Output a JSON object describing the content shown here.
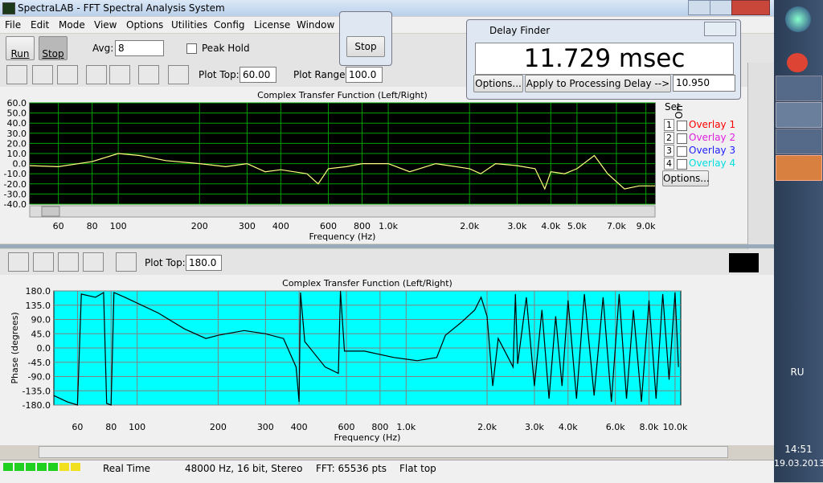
{
  "window": {
    "title": "SpectraLAB - FFT Spectral Analysis System"
  },
  "menu": [
    "File",
    "Edit",
    "Mode",
    "View",
    "Options",
    "Utilities",
    "Config",
    "License",
    "Window"
  ],
  "toolbar": {
    "run": "Run",
    "stop": "Stop",
    "avg_label": "Avg:",
    "avg_value": "8",
    "peak_hold": "Peak Hold",
    "plot_top_label": "Plot Top:",
    "plot_top_value": "60.00",
    "plot_range_label": "Plot Range:",
    "plot_range_value": "100.0"
  },
  "stop_popup": {
    "button": "Stop"
  },
  "delay_finder": {
    "title": "Delay Finder",
    "reading": "11.729 msec",
    "options": "Options...",
    "apply": "Apply to Processing Delay -->",
    "delay_value": "10.950"
  },
  "overlays": {
    "set_header": "Set",
    "on_header": "On",
    "options": "Options...",
    "items": [
      {
        "set": 1,
        "label": "Overlay 1",
        "color": "#ff0000"
      },
      {
        "set": 2,
        "label": "Overlay 2",
        "color": "#e020e0"
      },
      {
        "set": 3,
        "label": "Overlay 3",
        "color": "#2020ff"
      },
      {
        "set": 4,
        "label": "Overlay 4",
        "color": "#00e0e0"
      }
    ]
  },
  "phase_toolbar": {
    "plot_top_label": "Plot Top:",
    "plot_top_value": "180.0"
  },
  "chart_data": [
    {
      "type": "line",
      "title": "Complex Transfer Function (Left/Right)",
      "x_label": "Frequency (Hz)",
      "xscale": "log",
      "background": "#000000",
      "grid_color": "#00a000",
      "grid": true,
      "xlim": [
        47,
        9730
      ],
      "ylim": [
        -40,
        60
      ],
      "xticks": [
        60,
        80,
        100,
        200,
        300,
        400,
        600,
        800,
        {
          "value": 1000,
          "label": "1.0k"
        },
        {
          "value": 2000,
          "label": "2.0k"
        },
        {
          "value": 3000,
          "label": "3.0k"
        },
        {
          "value": 4000,
          "label": "4.0k"
        },
        {
          "value": 5000,
          "label": "5.0k"
        },
        {
          "value": 7000,
          "label": "7.0k"
        },
        {
          "value": 9000,
          "label": "9.0k"
        }
      ],
      "yticks": [
        {
          "value": 60,
          "label": "60.0"
        },
        {
          "value": 50,
          "label": "50.0"
        },
        {
          "value": 40,
          "label": "40.0"
        },
        {
          "value": 30,
          "label": "30.0"
        },
        {
          "value": 20,
          "label": "20.0"
        },
        {
          "value": 10,
          "label": "10.0"
        },
        {
          "value": 0,
          "label": "0.0"
        },
        {
          "value": -10,
          "label": "-10.0"
        },
        {
          "value": -20,
          "label": "-20.0"
        },
        {
          "value": -30,
          "label": "-30.0"
        },
        {
          "value": -40,
          "label": "-40.0"
        }
      ],
      "series": [
        {
          "color": "#ffff80",
          "x": [
            47,
            60,
            80,
            100,
            120,
            150,
            200,
            250,
            300,
            350,
            400,
            500,
            550,
            600,
            700,
            800,
            1000,
            1200,
            1500,
            2000,
            2200,
            2500,
            3000,
            3500,
            3800,
            4000,
            4500,
            5000,
            5800,
            6500,
            7500,
            8500,
            9730
          ],
          "values": [
            -2,
            -3,
            2,
            10,
            8,
            3,
            0,
            -3,
            0,
            -8,
            -6,
            -10,
            -20,
            -5,
            -3,
            0,
            0,
            -8,
            0,
            -5,
            -10,
            0,
            -2,
            -5,
            -25,
            -8,
            -10,
            -5,
            8,
            -10,
            -25,
            -22,
            -22
          ]
        }
      ]
    },
    {
      "type": "line",
      "title": "Complex Transfer Function (Left/Right)",
      "x_label": "Frequency (Hz)",
      "y_label": "Phase (degrees)",
      "xscale": "log",
      "background": "#00ffff",
      "grid_color": "#808080",
      "grid": true,
      "xlim": [
        49,
        10500
      ],
      "ylim": [
        -180,
        180
      ],
      "xticks": [
        60,
        80,
        100,
        200,
        300,
        400,
        600,
        800,
        {
          "value": 1000,
          "label": "1.0k"
        },
        {
          "value": 2000,
          "label": "2.0k"
        },
        {
          "value": 3000,
          "label": "3.0k"
        },
        {
          "value": 4000,
          "label": "4.0k"
        },
        {
          "value": 6000,
          "label": "6.0k"
        },
        {
          "value": 8000,
          "label": "8.0k"
        },
        {
          "value": 10000,
          "label": "10.0k"
        }
      ],
      "yticks": [
        {
          "value": 180,
          "label": "180.0"
        },
        {
          "value": 135,
          "label": "135.0"
        },
        {
          "value": 90,
          "label": "90.0"
        },
        {
          "value": 45,
          "label": "45.0"
        },
        {
          "value": 0,
          "label": "0.0"
        },
        {
          "value": -45,
          "label": "-45.0"
        },
        {
          "value": -90,
          "label": "-90.0"
        },
        {
          "value": -135,
          "label": "-135.0"
        },
        {
          "value": -180,
          "label": "-180.0"
        }
      ],
      "series": [
        {
          "color": "#000000",
          "x": [
            49,
            55,
            60,
            62,
            70,
            75,
            77,
            80,
            82,
            90,
            120,
            150,
            180,
            200,
            250,
            300,
            350,
            390,
            400,
            405,
            420,
            500,
            560,
            570,
            590,
            700,
            900,
            1100,
            1300,
            1400,
            1600,
            1800,
            1900,
            2000,
            2100,
            2200,
            2500,
            2550,
            2600,
            2800,
            3000,
            3200,
            3400,
            3600,
            3800,
            4000,
            4300,
            4600,
            5000,
            5400,
            5800,
            6200,
            6600,
            7000,
            7500,
            8000,
            8500,
            9000,
            9500,
            10000,
            10300
          ],
          "values": [
            -150,
            -170,
            -180,
            170,
            160,
            175,
            -175,
            -180,
            175,
            160,
            110,
            60,
            30,
            40,
            55,
            45,
            30,
            -60,
            -170,
            175,
            20,
            -60,
            -80,
            180,
            -10,
            -10,
            -30,
            -40,
            -30,
            40,
            80,
            120,
            160,
            100,
            -120,
            30,
            -60,
            170,
            -50,
            160,
            -120,
            120,
            -160,
            100,
            -120,
            150,
            -160,
            170,
            -150,
            160,
            -170,
            170,
            -160,
            120,
            -170,
            150,
            -160,
            170,
            -100,
            175,
            -60
          ]
        }
      ]
    }
  ],
  "status": {
    "mode": "Real Time",
    "format": "48000 Hz, 16 bit, Stereo",
    "fft": "FFT: 65536 pts",
    "window": "Flat top"
  },
  "taskbar": {
    "language": "RU",
    "time": "14:51",
    "date": "19.03.2013"
  }
}
